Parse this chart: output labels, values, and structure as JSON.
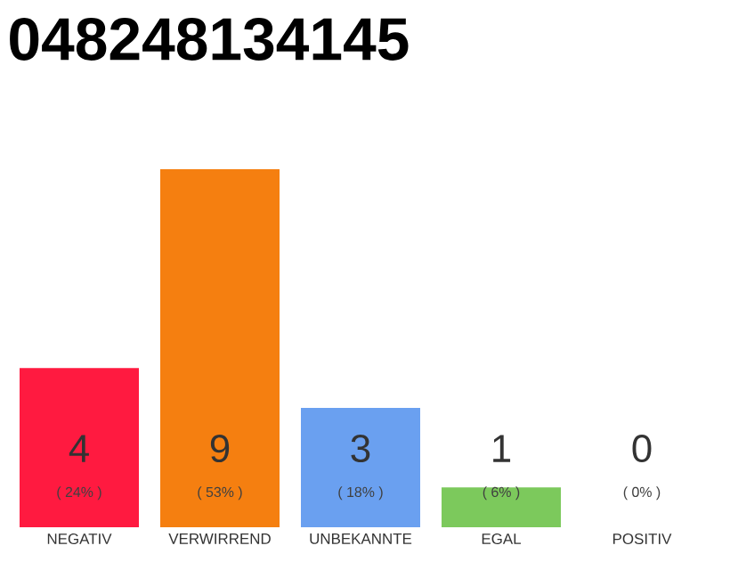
{
  "chart_data": {
    "type": "bar",
    "title": "048248134145",
    "categories": [
      "NEGATIV",
      "VERWIRREND",
      "UNBEKANNTE",
      "EGAL",
      "POSITIV"
    ],
    "values": [
      4,
      9,
      3,
      1,
      0
    ],
    "colors": [
      "#ff1a40",
      "#f57f10",
      "#6aa0f0",
      "#7cc95c",
      "#eeeeee"
    ],
    "ylim": [
      0,
      9
    ],
    "tick_labels": "x",
    "data_labels": true,
    "annotations": [
      "( 24% )",
      "( 53% )",
      "( 18% )",
      "( 6% )",
      "( 0% )"
    ]
  }
}
